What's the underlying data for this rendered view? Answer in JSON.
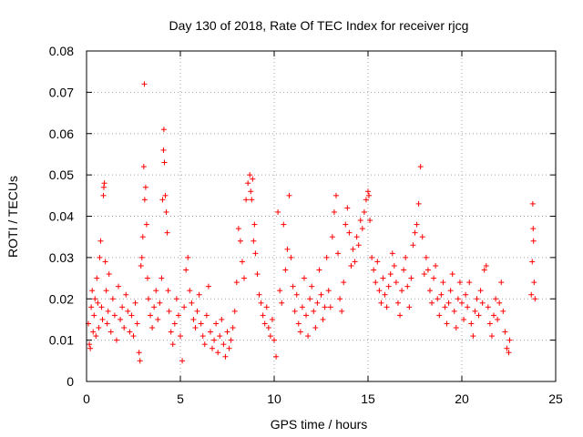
{
  "chart_data": {
    "type": "scatter",
    "title": "Day 130 of 2018, Rate Of TEC Index for receiver rjcg",
    "xlabel": "GPS time / hours",
    "ylabel": "ROTI / TECUs",
    "xlim": [
      0,
      25
    ],
    "ylim": [
      0,
      0.08
    ],
    "xticks": [
      0,
      5,
      10,
      15,
      20,
      25
    ],
    "xtick_labels": [
      "0",
      "5",
      "10",
      "15",
      "20",
      "25"
    ],
    "yticks": [
      0,
      0.01,
      0.02,
      0.03,
      0.04,
      0.05,
      0.06,
      0.07,
      0.08
    ],
    "ytick_labels": [
      "0",
      "0.01",
      "0.02",
      "0.03",
      "0.04",
      "0.05",
      "0.06",
      "0.07",
      "0.08"
    ],
    "grid": true,
    "marker": "+",
    "color": "#ff0000",
    "series": [
      {
        "name": "ROTI",
        "points": [
          [
            0.1,
            0.014
          ],
          [
            0.15,
            0.009
          ],
          [
            0.2,
            0.008
          ],
          [
            0.25,
            0.018
          ],
          [
            0.3,
            0.022
          ],
          [
            0.35,
            0.012
          ],
          [
            0.4,
            0.016
          ],
          [
            0.45,
            0.02
          ],
          [
            0.5,
            0.011
          ],
          [
            0.55,
            0.025
          ],
          [
            0.6,
            0.019
          ],
          [
            0.65,
            0.013
          ],
          [
            0.7,
            0.03
          ],
          [
            0.75,
            0.034
          ],
          [
            0.8,
            0.018
          ],
          [
            0.85,
            0.015
          ],
          [
            0.9,
            0.045
          ],
          [
            0.92,
            0.047
          ],
          [
            0.95,
            0.048
          ],
          [
            1.0,
            0.029
          ],
          [
            1.05,
            0.022
          ],
          [
            1.1,
            0.014
          ],
          [
            1.15,
            0.017
          ],
          [
            1.2,
            0.026
          ],
          [
            1.3,
            0.012
          ],
          [
            1.4,
            0.02
          ],
          [
            1.5,
            0.016
          ],
          [
            1.6,
            0.01
          ],
          [
            1.7,
            0.023
          ],
          [
            1.8,
            0.015
          ],
          [
            1.9,
            0.018
          ],
          [
            2.0,
            0.013
          ],
          [
            2.1,
            0.021
          ],
          [
            2.2,
            0.017
          ],
          [
            2.3,
            0.012
          ],
          [
            2.4,
            0.016
          ],
          [
            2.5,
            0.011
          ],
          [
            2.6,
            0.019
          ],
          [
            2.7,
            0.014
          ],
          [
            2.8,
            0.007
          ],
          [
            2.85,
            0.005
          ],
          [
            2.9,
            0.028
          ],
          [
            2.95,
            0.03
          ],
          [
            3.0,
            0.035
          ],
          [
            3.05,
            0.052
          ],
          [
            3.08,
            0.072
          ],
          [
            3.1,
            0.044
          ],
          [
            3.15,
            0.047
          ],
          [
            3.2,
            0.038
          ],
          [
            3.25,
            0.025
          ],
          [
            3.3,
            0.02
          ],
          [
            3.4,
            0.016
          ],
          [
            3.5,
            0.013
          ],
          [
            3.6,
            0.018
          ],
          [
            3.7,
            0.022
          ],
          [
            3.8,
            0.015
          ],
          [
            3.9,
            0.019
          ],
          [
            4.0,
            0.025
          ],
          [
            4.05,
            0.044
          ],
          [
            4.1,
            0.056
          ],
          [
            4.12,
            0.061
          ],
          [
            4.15,
            0.053
          ],
          [
            4.2,
            0.045
          ],
          [
            4.25,
            0.041
          ],
          [
            4.3,
            0.036
          ],
          [
            4.35,
            0.022
          ],
          [
            4.4,
            0.017
          ],
          [
            4.5,
            0.012
          ],
          [
            4.6,
            0.009
          ],
          [
            4.7,
            0.014
          ],
          [
            4.8,
            0.02
          ],
          [
            4.9,
            0.016
          ],
          [
            5.0,
            0.011
          ],
          [
            5.1,
            0.005
          ],
          [
            5.2,
            0.018
          ],
          [
            5.3,
            0.027
          ],
          [
            5.4,
            0.03
          ],
          [
            5.5,
            0.022
          ],
          [
            5.6,
            0.019
          ],
          [
            5.7,
            0.015
          ],
          [
            5.8,
            0.013
          ],
          [
            5.9,
            0.017
          ],
          [
            6.0,
            0.021
          ],
          [
            6.1,
            0.014
          ],
          [
            6.2,
            0.011
          ],
          [
            6.3,
            0.009
          ],
          [
            6.4,
            0.016
          ],
          [
            6.5,
            0.023
          ],
          [
            6.6,
            0.012
          ],
          [
            6.7,
            0.008
          ],
          [
            6.8,
            0.01
          ],
          [
            6.9,
            0.014
          ],
          [
            7.0,
            0.007
          ],
          [
            7.1,
            0.011
          ],
          [
            7.2,
            0.015
          ],
          [
            7.3,
            0.009
          ],
          [
            7.4,
            0.006
          ],
          [
            7.5,
            0.012
          ],
          [
            7.6,
            0.008
          ],
          [
            7.7,
            0.01
          ],
          [
            7.8,
            0.013
          ],
          [
            7.9,
            0.017
          ],
          [
            8.0,
            0.024
          ],
          [
            8.1,
            0.037
          ],
          [
            8.2,
            0.034
          ],
          [
            8.3,
            0.029
          ],
          [
            8.4,
            0.025
          ],
          [
            8.5,
            0.044
          ],
          [
            8.6,
            0.048
          ],
          [
            8.7,
            0.05
          ],
          [
            8.75,
            0.046
          ],
          [
            8.8,
            0.044
          ],
          [
            8.85,
            0.049
          ],
          [
            8.9,
            0.034
          ],
          [
            8.95,
            0.038
          ],
          [
            9.0,
            0.031
          ],
          [
            9.1,
            0.026
          ],
          [
            9.2,
            0.021
          ],
          [
            9.3,
            0.019
          ],
          [
            9.4,
            0.016
          ],
          [
            9.5,
            0.014
          ],
          [
            9.6,
            0.018
          ],
          [
            9.7,
            0.013
          ],
          [
            9.8,
            0.011
          ],
          [
            9.9,
            0.015
          ],
          [
            10.0,
            0.01
          ],
          [
            10.1,
            0.006
          ],
          [
            10.2,
            0.041
          ],
          [
            10.3,
            0.022
          ],
          [
            10.4,
            0.019
          ],
          [
            10.5,
            0.038
          ],
          [
            10.6,
            0.027
          ],
          [
            10.7,
            0.032
          ],
          [
            10.8,
            0.045
          ],
          [
            10.9,
            0.03
          ],
          [
            11.0,
            0.023
          ],
          [
            11.1,
            0.017
          ],
          [
            11.2,
            0.021
          ],
          [
            11.3,
            0.014
          ],
          [
            11.4,
            0.012
          ],
          [
            11.5,
            0.018
          ],
          [
            11.6,
            0.025
          ],
          [
            11.7,
            0.016
          ],
          [
            11.8,
            0.011
          ],
          [
            11.9,
            0.02
          ],
          [
            12.0,
            0.023
          ],
          [
            12.1,
            0.017
          ],
          [
            12.2,
            0.013
          ],
          [
            12.3,
            0.019
          ],
          [
            12.4,
            0.027
          ],
          [
            12.5,
            0.021
          ],
          [
            12.6,
            0.015
          ],
          [
            12.7,
            0.018
          ],
          [
            12.8,
            0.03
          ],
          [
            12.9,
            0.022
          ],
          [
            13.0,
            0.018
          ],
          [
            13.1,
            0.035
          ],
          [
            13.2,
            0.041
          ],
          [
            13.3,
            0.045
          ],
          [
            13.4,
            0.031
          ],
          [
            13.5,
            0.02
          ],
          [
            13.6,
            0.017
          ],
          [
            13.7,
            0.024
          ],
          [
            13.8,
            0.038
          ],
          [
            13.9,
            0.042
          ],
          [
            14.0,
            0.036
          ],
          [
            14.1,
            0.028
          ],
          [
            14.2,
            0.032
          ],
          [
            14.3,
            0.029
          ],
          [
            14.4,
            0.035
          ],
          [
            14.5,
            0.033
          ],
          [
            14.6,
            0.039
          ],
          [
            14.7,
            0.037
          ],
          [
            14.8,
            0.041
          ],
          [
            14.9,
            0.044
          ],
          [
            15.0,
            0.046
          ],
          [
            15.05,
            0.045
          ],
          [
            15.1,
            0.039
          ],
          [
            15.2,
            0.03
          ],
          [
            15.3,
            0.027
          ],
          [
            15.4,
            0.024
          ],
          [
            15.5,
            0.029
          ],
          [
            15.6,
            0.022
          ],
          [
            15.7,
            0.019
          ],
          [
            15.8,
            0.025
          ],
          [
            15.9,
            0.021
          ],
          [
            16.0,
            0.018
          ],
          [
            16.1,
            0.023
          ],
          [
            16.2,
            0.026
          ],
          [
            16.3,
            0.031
          ],
          [
            16.4,
            0.028
          ],
          [
            16.5,
            0.024
          ],
          [
            16.6,
            0.019
          ],
          [
            16.7,
            0.016
          ],
          [
            16.8,
            0.022
          ],
          [
            16.9,
            0.027
          ],
          [
            17.0,
            0.03
          ],
          [
            17.1,
            0.023
          ],
          [
            17.2,
            0.018
          ],
          [
            17.3,
            0.025
          ],
          [
            17.4,
            0.033
          ],
          [
            17.5,
            0.036
          ],
          [
            17.6,
            0.038
          ],
          [
            17.7,
            0.043
          ],
          [
            17.8,
            0.052
          ],
          [
            17.9,
            0.035
          ],
          [
            18.0,
            0.026
          ],
          [
            18.1,
            0.03
          ],
          [
            18.2,
            0.027
          ],
          [
            18.3,
            0.022
          ],
          [
            18.4,
            0.019
          ],
          [
            18.5,
            0.025
          ],
          [
            18.6,
            0.028
          ],
          [
            18.7,
            0.02
          ],
          [
            18.8,
            0.016
          ],
          [
            18.9,
            0.021
          ],
          [
            19.0,
            0.024
          ],
          [
            19.1,
            0.018
          ],
          [
            19.2,
            0.014
          ],
          [
            19.3,
            0.019
          ],
          [
            19.4,
            0.022
          ],
          [
            19.5,
            0.026
          ],
          [
            19.6,
            0.017
          ],
          [
            19.7,
            0.013
          ],
          [
            19.8,
            0.02
          ],
          [
            19.9,
            0.024
          ],
          [
            20.0,
            0.019
          ],
          [
            20.1,
            0.015
          ],
          [
            20.2,
            0.021
          ],
          [
            20.3,
            0.018
          ],
          [
            20.4,
            0.024
          ],
          [
            20.5,
            0.014
          ],
          [
            20.6,
            0.011
          ],
          [
            20.7,
            0.017
          ],
          [
            20.8,
            0.02
          ],
          [
            20.9,
            0.016
          ],
          [
            21.0,
            0.022
          ],
          [
            21.1,
            0.019
          ],
          [
            21.2,
            0.027
          ],
          [
            21.3,
            0.028
          ],
          [
            21.4,
            0.018
          ],
          [
            21.5,
            0.014
          ],
          [
            21.6,
            0.011
          ],
          [
            21.7,
            0.016
          ],
          [
            21.8,
            0.02
          ],
          [
            21.9,
            0.015
          ],
          [
            22.0,
            0.019
          ],
          [
            22.1,
            0.024
          ],
          [
            22.2,
            0.017
          ],
          [
            22.3,
            0.012
          ],
          [
            22.4,
            0.008
          ],
          [
            22.5,
            0.007
          ],
          [
            22.55,
            0.01
          ],
          [
            23.7,
            0.021
          ],
          [
            23.75,
            0.029
          ],
          [
            23.78,
            0.043
          ],
          [
            23.8,
            0.037
          ],
          [
            23.82,
            0.034
          ],
          [
            23.85,
            0.024
          ],
          [
            23.9,
            0.02
          ]
        ]
      }
    ]
  }
}
